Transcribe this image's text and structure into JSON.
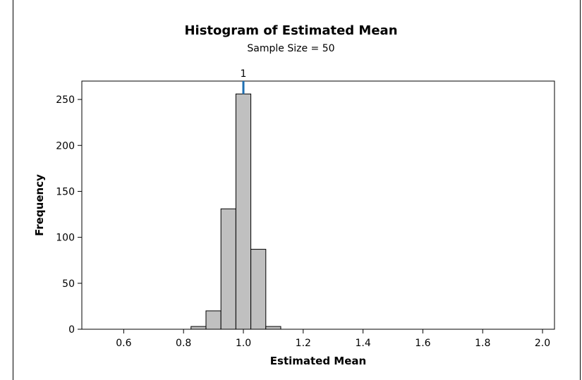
{
  "chart_data": {
    "type": "bar",
    "title": "Histogram of Estimated Mean",
    "subtitle": "Sample Size = 50",
    "xlabel": "Estimated Mean",
    "ylabel": "Frequency",
    "xlim": [
      0.46,
      2.04
    ],
    "ylim": [
      0,
      270
    ],
    "xticks": [
      0.6,
      0.8,
      1.0,
      1.2,
      1.4,
      1.6,
      1.8,
      2.0
    ],
    "xtick_labels": [
      "0.6",
      "0.8",
      "1.0",
      "1.2",
      "1.4",
      "1.6",
      "1.8",
      "2.0"
    ],
    "yticks": [
      0,
      50,
      100,
      150,
      200,
      250
    ],
    "ytick_labels": [
      "0",
      "50",
      "100",
      "150",
      "200",
      "250"
    ],
    "bin_width": 0.05,
    "bins": [
      {
        "start": 0.825,
        "end": 0.875,
        "count": 3
      },
      {
        "start": 0.875,
        "end": 0.925,
        "count": 20
      },
      {
        "start": 0.925,
        "end": 0.975,
        "count": 131
      },
      {
        "start": 0.975,
        "end": 1.025,
        "count": 256
      },
      {
        "start": 1.025,
        "end": 1.075,
        "count": 87
      },
      {
        "start": 1.075,
        "end": 1.125,
        "count": 3
      }
    ],
    "bar_color": "#c0c0c0",
    "bar_edge_color": "#000000",
    "reference_line": {
      "x": 1.0,
      "label": "1",
      "color": "#1f6fb2"
    },
    "grid": false
  }
}
